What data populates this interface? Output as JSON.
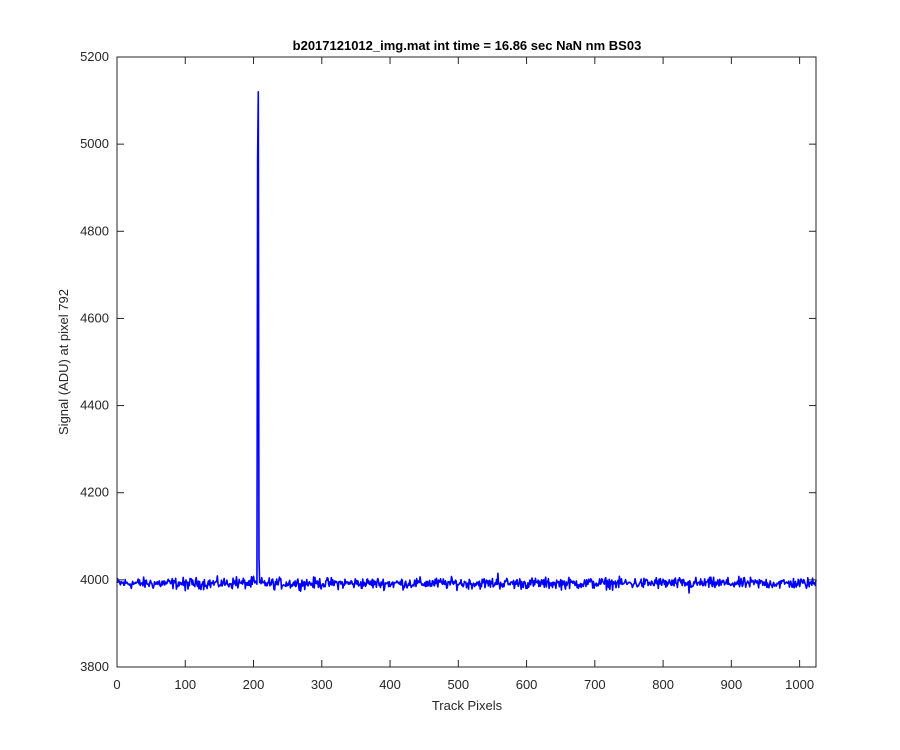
{
  "chart_data": {
    "type": "line",
    "title": "b2017121012_img.mat int time = 16.86 sec  NaN nm BS03",
    "xlabel": "Track Pixels",
    "ylabel": "Signal (ADU) at pixel 792",
    "xlim": [
      0,
      1024
    ],
    "ylim": [
      3800,
      5200
    ],
    "xticks": [
      0,
      100,
      200,
      300,
      400,
      500,
      600,
      700,
      800,
      900,
      1000
    ],
    "yticks": [
      3800,
      4000,
      4200,
      4400,
      4600,
      4800,
      5000,
      5200
    ],
    "grid": false,
    "legend": "none",
    "series": [
      {
        "color": "#0000ff",
        "baseline": 3992,
        "noise_amplitude": 9,
        "n_points": 1024,
        "x": [
          0,
          50,
          100,
          150,
          175,
          200,
          205,
          206,
          207,
          208,
          210,
          230,
          300,
          400,
          500,
          558,
          600,
          700,
          790,
          800,
          838,
          900,
          950,
          1000,
          1024
        ],
        "y": [
          3990,
          3994,
          3975,
          3992,
          4007,
          4008,
          3990,
          4968,
          5120,
          4050,
          3982,
          3978,
          3993,
          4003,
          3994,
          4015,
          3990,
          3995,
          4005,
          3990,
          3970,
          3994,
          3998,
          3992,
          3996
        ]
      }
    ]
  }
}
